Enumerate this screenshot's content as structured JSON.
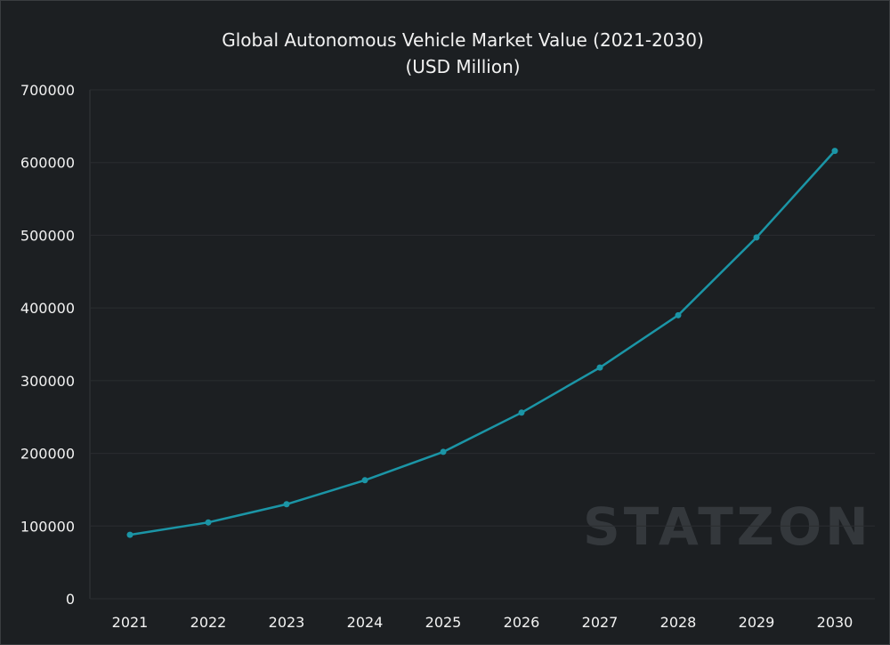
{
  "chart_data": {
    "type": "line",
    "title": "Global Autonomous Vehicle Market Value (2021-2030)",
    "subtitle": "(USD Million)",
    "xlabel": "",
    "ylabel": "",
    "categories": [
      "2021",
      "2022",
      "2023",
      "2024",
      "2025",
      "2026",
      "2027",
      "2028",
      "2029",
      "2030"
    ],
    "values": [
      88000,
      105000,
      130000,
      163000,
      202000,
      256000,
      318000,
      390000,
      497000,
      616000
    ],
    "ylim": [
      0,
      700000
    ],
    "yticks": [
      "0",
      "100000",
      "200000",
      "300000",
      "400000",
      "500000",
      "600000",
      "700000"
    ],
    "grid": true,
    "legend": "none",
    "colors": {
      "line": "#1b95a6",
      "background": "#1c1f22",
      "text": "#f2f2f2",
      "grid": "#2a2d30"
    }
  },
  "watermark": "STATZON"
}
